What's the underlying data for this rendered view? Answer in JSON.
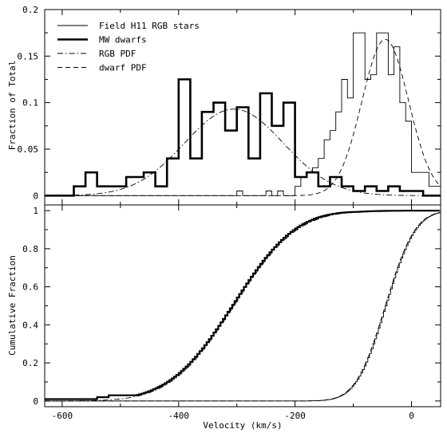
{
  "chart_data": [
    {
      "type": "line",
      "panel": "top",
      "xlabel": "",
      "ylabel": "Fraction of Total",
      "xlim": [
        -630,
        50
      ],
      "ylim": [
        -0.01,
        0.2
      ],
      "xticks": [
        -600,
        -400,
        -200,
        0
      ],
      "yticks": [
        0,
        0.05,
        0.1,
        0.15,
        0.2
      ],
      "ytick_labels": [
        "0",
        "0.05",
        "0.1",
        "0.15",
        "0.2"
      ],
      "legend_position": "top-left",
      "legend": [
        {
          "label": "Field H11 RGB stars",
          "style": "thin-solid"
        },
        {
          "label": "MW dwarfs",
          "style": "thick-solid"
        },
        {
          "label": "RGB PDF",
          "style": "dash-dot"
        },
        {
          "label": "dwarf PDF",
          "style": "dashed"
        }
      ],
      "series": [
        {
          "name": "Field H11 RGB stars",
          "style": "thin-solid",
          "bin_edges": [
            -630,
            -300,
            -290,
            -250,
            -240,
            -230,
            -220,
            -200,
            -190,
            -180,
            -170,
            -160,
            -150,
            -140,
            -130,
            -120,
            -110,
            -100,
            -90,
            -80,
            -70,
            -60,
            -50,
            -40,
            -30,
            -20,
            -10,
            0,
            10,
            20,
            30,
            40,
            50
          ],
          "values": [
            0,
            0.005,
            0,
            0.005,
            0,
            0.005,
            0,
            0.01,
            0.02,
            0.025,
            0.03,
            0.04,
            0.06,
            0.07,
            0.09,
            0.125,
            0.105,
            0.175,
            0.175,
            0.125,
            0.13,
            0.175,
            0.175,
            0.13,
            0.16,
            0.1,
            0.08,
            0.025,
            0.025,
            0.025,
            0.01,
            0.01
          ]
        },
        {
          "name": "MW dwarfs",
          "style": "thick-solid",
          "bin_edges": [
            -630,
            -580,
            -570,
            -560,
            -550,
            -540,
            -530,
            -520,
            -510,
            -500,
            -490,
            -480,
            -470,
            -460,
            -450,
            -440,
            -430,
            -420,
            -410,
            -400,
            -390,
            -380,
            -370,
            -360,
            -350,
            -340,
            -330,
            -320,
            -310,
            -300,
            -290,
            -280,
            -270,
            -260,
            -250,
            -240,
            -230,
            -220,
            -210,
            -200,
            -190,
            -180,
            -170,
            -160,
            -150,
            -140,
            -130,
            -120,
            -110,
            -100,
            -90,
            -80,
            -70,
            -60,
            -50,
            -40,
            -30,
            -20,
            -10,
            0,
            10,
            20,
            30,
            40,
            50
          ],
          "values": [
            0,
            0.01,
            0.01,
            0.025,
            0.025,
            0.01,
            0.01,
            0.01,
            0.01,
            0.01,
            0.02,
            0.02,
            0.02,
            0.025,
            0.025,
            0.01,
            0.01,
            0.04,
            0.04,
            0.125,
            0.125,
            0.04,
            0.04,
            0.09,
            0.09,
            0.1,
            0.1,
            0.07,
            0.07,
            0.095,
            0.095,
            0.04,
            0.04,
            0.11,
            0.11,
            0.075,
            0.075,
            0.1,
            0.1,
            0.02,
            0.02,
            0.025,
            0.025,
            0.01,
            0.01,
            0.02,
            0.02,
            0.01,
            0.01,
            0.005,
            0.005,
            0.01,
            0.01,
            0.005,
            0.005,
            0.01,
            0.01,
            0.005,
            0.005,
            0.005,
            0.005,
            0,
            0,
            0
          ]
        },
        {
          "name": "RGB PDF",
          "style": "dash-dot",
          "gaussian": {
            "mean": -305,
            "sigma": 85,
            "peak": 0.093
          },
          "x_range": [
            -580,
            50
          ]
        },
        {
          "name": "dwarf PDF",
          "style": "dashed",
          "gaussian": {
            "mean": -45,
            "sigma": 40,
            "peak": 0.168
          },
          "x_range": [
            -630,
            50
          ]
        }
      ]
    },
    {
      "type": "line",
      "panel": "bottom",
      "xlabel": "Velocity (km/s)",
      "ylabel": "Cumulative Fraction",
      "xlim": [
        -630,
        50
      ],
      "ylim": [
        -0.03,
        1.03
      ],
      "xticks": [
        -600,
        -400,
        -200,
        0
      ],
      "xtick_labels": [
        "-600",
        "-400",
        "-200",
        "0"
      ],
      "yticks": [
        0,
        0.2,
        0.4,
        0.6,
        0.8,
        1
      ],
      "ytick_labels": [
        "0",
        "0.2",
        "0.4",
        "0.6",
        "0.8",
        "1"
      ],
      "series": [
        {
          "name": "MW dwarfs",
          "style": "thick-step",
          "cdf_of": {
            "mean": -305,
            "sigma": 85
          },
          "offset": 0.02,
          "floor": [
            [
              -630,
              0.01
            ],
            [
              -540,
              0.01
            ],
            [
              -540,
              0.02
            ],
            [
              -520,
              0.02
            ],
            [
              -520,
              0.03
            ]
          ]
        },
        {
          "name": "RGB PDF",
          "style": "dash-dot",
          "cdf_of": {
            "mean": -305,
            "sigma": 85
          }
        },
        {
          "name": "Field H11 RGB stars",
          "style": "thin-step",
          "cdf_of": {
            "mean": -45,
            "sigma": 40
          }
        },
        {
          "name": "dwarf PDF",
          "style": "dashed",
          "cdf_of": {
            "mean": -45,
            "sigma": 40
          }
        }
      ]
    }
  ]
}
